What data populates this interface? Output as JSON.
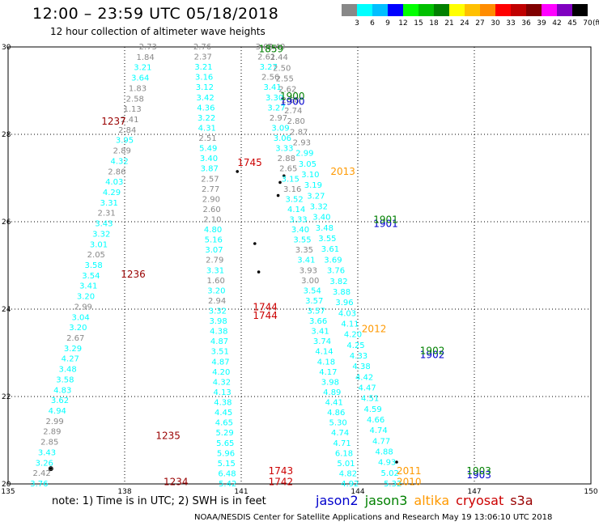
{
  "title": "12:00 – 23:59 UTC 05/18/2018",
  "subtitle": "12 hour collection of altimeter wave heights",
  "colorbar": {
    "unit": "(ft)",
    "labels": [
      "3",
      "6",
      "9",
      "12",
      "15",
      "18",
      "21",
      "24",
      "27",
      "30",
      "33",
      "36",
      "39",
      "42",
      "45",
      "70"
    ],
    "colors": [
      "#888888",
      "#00ffff",
      "#00bfff",
      "#0000ff",
      "#00ff00",
      "#00c000",
      "#008000",
      "#ffff00",
      "#ffc000",
      "#ff8c00",
      "#ff0000",
      "#c00000",
      "#800000",
      "#ff00ff",
      "#8000c0",
      "#000000"
    ]
  },
  "note": "note: 1) Time is in UTC; 2) SWH is in feet",
  "satellites": [
    {
      "name": "jason2",
      "color": "#0000cc"
    },
    {
      "name": "jason3",
      "color": "#008000"
    },
    {
      "name": "altika",
      "color": "#ff9900"
    },
    {
      "name": "cryosat",
      "color": "#cc0000"
    },
    {
      "name": "s3a",
      "color": "#990000"
    }
  ],
  "footer": "NOAA/NESDIS Center for Satellite Applications and Research    May 19 13:06:10 UTC 2018",
  "chart_data": {
    "type": "scatter",
    "xlim": [
      135,
      150
    ],
    "ylim": [
      20,
      30
    ],
    "x_ticks": [
      135,
      138,
      141,
      144,
      147,
      150
    ],
    "y_ticks": [
      20,
      22,
      24,
      26,
      28,
      30
    ],
    "grid": true,
    "tracks": [
      {
        "x0": 135.8,
        "x1": 138.6,
        "y0": 20.0,
        "y1": 30.0,
        "values": [
          "3.76",
          "2.42",
          "3.26",
          "3.43",
          "2.85",
          "2.89",
          "2.99",
          "4.94",
          "3.62",
          "4.83",
          "3.58",
          "3.48",
          "4.27",
          "3.29",
          "2.67",
          "3.20",
          "3.04",
          "2.99",
          "3.20",
          "3.41",
          "3.54",
          "3.58",
          "2.05",
          "3.01",
          "3.32",
          "3.43",
          "2.31",
          "3.31",
          "4.29",
          "4.03",
          "2.86",
          "4.32",
          "2.89",
          "3.95",
          "2.84",
          "2.41",
          "1.13",
          "2.58",
          "1.83",
          "3.64",
          "3.21",
          "1.84",
          "2.73"
        ],
        "colors": [
          "#00ffff",
          "#888888",
          "#00ffff",
          "#00ffff",
          "#888888",
          "#888888",
          "#888888",
          "#00ffff",
          "#00ffff",
          "#00ffff",
          "#00ffff",
          "#00ffff",
          "#00ffff",
          "#00ffff",
          "#888888",
          "#00ffff",
          "#00ffff",
          "#888888",
          "#00ffff",
          "#00ffff",
          "#00ffff",
          "#00ffff",
          "#888888",
          "#00ffff",
          "#00ffff",
          "#00ffff",
          "#888888",
          "#00ffff",
          "#00ffff",
          "#00ffff",
          "#888888",
          "#00ffff",
          "#888888",
          "#00ffff",
          "#888888",
          "#888888",
          "#888888",
          "#888888",
          "#888888",
          "#00ffff",
          "#00ffff",
          "#888888",
          "#888888"
        ]
      },
      {
        "x0": 140.65,
        "x1": 140.0,
        "y0": 20.0,
        "y1": 30.0,
        "values": [
          "5.42",
          "6.48",
          "5.15",
          "5.96",
          "5.65",
          "5.29",
          "4.65",
          "4.45",
          "4.38",
          "4.13",
          "4.32",
          "4.20",
          "4.87",
          "3.51",
          "4.87",
          "4.38",
          "3.98",
          "3.32",
          "2.94",
          "3.20",
          "1.60",
          "3.31",
          "2.79",
          "3.07",
          "5.16",
          "4.80",
          "2.10",
          "2.60",
          "2.90",
          "2.77",
          "2.57",
          "3.87",
          "3.40",
          "5.49",
          "2.51",
          "4.31",
          "3.22",
          "4.36",
          "3.42",
          "3.12",
          "3.16",
          "3.21",
          "2.37",
          "2.76"
        ],
        "colors": [
          "#00ffff",
          "#00ffff",
          "#00ffff",
          "#00ffff",
          "#00ffff",
          "#00ffff",
          "#00ffff",
          "#00ffff",
          "#00ffff",
          "#00ffff",
          "#00ffff",
          "#00ffff",
          "#00ffff",
          "#00ffff",
          "#00ffff",
          "#00ffff",
          "#00ffff",
          "#00ffff",
          "#888888",
          "#00ffff",
          "#888888",
          "#00ffff",
          "#888888",
          "#00ffff",
          "#00ffff",
          "#00ffff",
          "#888888",
          "#888888",
          "#888888",
          "#888888",
          "#888888",
          "#00ffff",
          "#00ffff",
          "#00ffff",
          "#888888",
          "#00ffff",
          "#00ffff",
          "#00ffff",
          "#00ffff",
          "#00ffff",
          "#00ffff",
          "#00ffff",
          "#888888",
          "#888888"
        ]
      },
      {
        "x0": 143.8,
        "x1": 141.6,
        "y0": 20.0,
        "y1": 30.0,
        "values": [
          "4.92",
          "4.82",
          "5.01",
          "6.18",
          "4.71",
          "4.74",
          "5.30",
          "4.86",
          "4.41",
          "4.89",
          "3.98",
          "4.17",
          "4.18",
          "4.14",
          "3.74",
          "3.41",
          "3.66",
          "3.57",
          "3.57",
          "3.54",
          "3.00",
          "3.93",
          "3.41",
          "3.35",
          "3.55",
          "3.40",
          "3.33",
          "4.14",
          "3.52",
          "3.16",
          "3.15",
          "2.65",
          "2.88",
          "3.33",
          "3.06",
          "3.09",
          "2.97",
          "3.27",
          "3.30",
          "3.41",
          "2.56",
          "3.27",
          "2.61",
          "3.00"
        ],
        "colors": [
          "#00ffff",
          "#00ffff",
          "#00ffff",
          "#00ffff",
          "#00ffff",
          "#00ffff",
          "#00ffff",
          "#00ffff",
          "#00ffff",
          "#00ffff",
          "#00ffff",
          "#00ffff",
          "#00ffff",
          "#00ffff",
          "#00ffff",
          "#00ffff",
          "#00ffff",
          "#00ffff",
          "#00ffff",
          "#00ffff",
          "#888888",
          "#888888",
          "#00ffff",
          "#888888",
          "#00ffff",
          "#00ffff",
          "#00ffff",
          "#00ffff",
          "#00ffff",
          "#888888",
          "#00ffff",
          "#888888",
          "#888888",
          "#00ffff",
          "#00ffff",
          "#00ffff",
          "#888888",
          "#00ffff",
          "#00ffff",
          "#00ffff",
          "#888888",
          "#00ffff",
          "#888888",
          "#888888"
        ]
      },
      {
        "x0": 144.9,
        "x1": 141.9,
        "y0": 20.0,
        "y1": 30.0,
        "values": [
          "5.32",
          "5.02",
          "4.93",
          "4.88",
          "4.77",
          "4.74",
          "4.66",
          "4.59",
          "4.51",
          "4.47",
          "4.42",
          "4.38",
          "4.33",
          "4.25",
          "4.20",
          "4.11",
          "4.03",
          "3.96",
          "3.88",
          "3.82",
          "3.76",
          "3.69",
          "3.61",
          "3.55",
          "3.48",
          "3.40",
          "3.32",
          "3.27",
          "3.19",
          "3.10",
          "3.05",
          "2.99",
          "2.93",
          "2.87",
          "2.80",
          "2.74",
          "2.68",
          "2.62",
          "2.55",
          "2.50",
          "2.44",
          "2.40"
        ],
        "colors": [
          "#00ffff",
          "#00ffff",
          "#00ffff",
          "#00ffff",
          "#00ffff",
          "#00ffff",
          "#00ffff",
          "#00ffff",
          "#00ffff",
          "#00ffff",
          "#00ffff",
          "#00ffff",
          "#00ffff",
          "#00ffff",
          "#00ffff",
          "#00ffff",
          "#00ffff",
          "#00ffff",
          "#00ffff",
          "#00ffff",
          "#00ffff",
          "#00ffff",
          "#00ffff",
          "#00ffff",
          "#00ffff",
          "#00ffff",
          "#00ffff",
          "#00ffff",
          "#00ffff",
          "#00ffff",
          "#00ffff",
          "#00ffff",
          "#888888",
          "#888888",
          "#888888",
          "#888888",
          "#888888",
          "#888888",
          "#888888",
          "#888888",
          "#888888",
          "#888888"
        ]
      }
    ],
    "time_labels": [
      {
        "text": "1237",
        "x": 137.4,
        "y": 28.3,
        "color": "#990000"
      },
      {
        "text": "1236",
        "x": 137.9,
        "y": 24.8,
        "color": "#990000"
      },
      {
        "text": "1235",
        "x": 138.8,
        "y": 21.1,
        "color": "#990000"
      },
      {
        "text": "1234",
        "x": 139.0,
        "y": 20.05,
        "color": "#990000"
      },
      {
        "text": "1745",
        "x": 140.9,
        "y": 27.35,
        "color": "#cc0000"
      },
      {
        "text": "1744",
        "x": 141.3,
        "y": 24.05,
        "color": "#cc0000"
      },
      {
        "text": "1744",
        "x": 141.3,
        "y": 23.85,
        "color": "#cc0000"
      },
      {
        "text": "1743",
        "x": 141.7,
        "y": 20.3,
        "color": "#cc0000"
      },
      {
        "text": "1742",
        "x": 141.7,
        "y": 20.05,
        "color": "#cc0000"
      },
      {
        "text": "1859",
        "x": 141.45,
        "y": 29.95,
        "color": "#008000"
      },
      {
        "text": "1900",
        "x": 142.0,
        "y": 28.75,
        "color": "#0000cc"
      },
      {
        "text": "1900",
        "x": 142.0,
        "y": 28.87,
        "color": "#008000"
      },
      {
        "text": "1901",
        "x": 144.4,
        "y": 25.95,
        "color": "#0000cc"
      },
      {
        "text": "1901",
        "x": 144.4,
        "y": 26.05,
        "color": "#008000"
      },
      {
        "text": "1902",
        "x": 145.6,
        "y": 22.95,
        "color": "#0000cc"
      },
      {
        "text": "1902",
        "x": 145.6,
        "y": 23.05,
        "color": "#008000"
      },
      {
        "text": "1903",
        "x": 146.8,
        "y": 20.2,
        "color": "#0000cc"
      },
      {
        "text": "1903",
        "x": 146.8,
        "y": 20.3,
        "color": "#008000"
      },
      {
        "text": "2013",
        "x": 143.3,
        "y": 27.15,
        "color": "#ff9900"
      },
      {
        "text": "2012",
        "x": 144.1,
        "y": 23.55,
        "color": "#ff9900"
      },
      {
        "text": "2011",
        "x": 145.0,
        "y": 20.3,
        "color": "#ff9900"
      },
      {
        "text": "2010",
        "x": 145.0,
        "y": 20.05,
        "color": "#ff9900"
      }
    ],
    "land_points": [
      {
        "x": 136.1,
        "y": 20.35
      },
      {
        "x": 140.9,
        "y": 27.15
      },
      {
        "x": 141.35,
        "y": 25.5
      },
      {
        "x": 141.45,
        "y": 24.85
      },
      {
        "x": 142.0,
        "y": 26.9
      },
      {
        "x": 142.1,
        "y": 27.05
      },
      {
        "x": 141.95,
        "y": 26.6
      },
      {
        "x": 145.0,
        "y": 20.5
      }
    ]
  }
}
